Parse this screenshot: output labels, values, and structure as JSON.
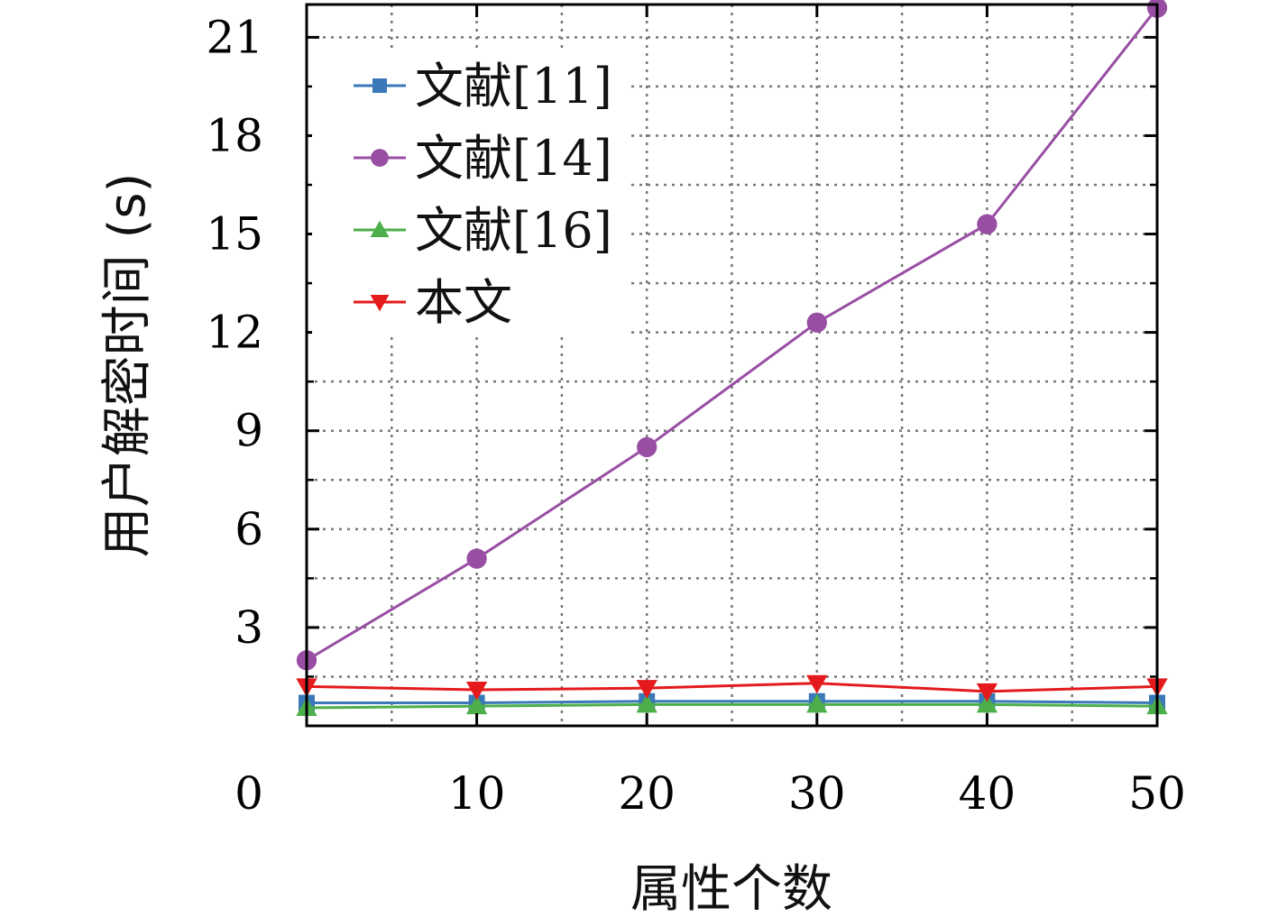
{
  "chart_data": {
    "type": "line",
    "xlabel": "属性个数",
    "ylabel": "用户解密时间 (s)",
    "xlim": [
      0,
      50
    ],
    "ylim": [
      0,
      22
    ],
    "x_ticks": [
      "0",
      "10",
      "20",
      "30",
      "40",
      "50"
    ],
    "y_ticks": [
      "3",
      "6",
      "9",
      "12",
      "15",
      "18",
      "21"
    ],
    "grid": true,
    "legend_position": "top-left",
    "x": [
      0,
      10,
      20,
      30,
      40,
      50
    ],
    "series": [
      {
        "name": "文献[11]",
        "color": "#3a78b8",
        "marker": "square",
        "values": [
          0.7,
          0.7,
          0.75,
          0.75,
          0.75,
          0.7
        ]
      },
      {
        "name": "文献[14]",
        "color": "#984ea3",
        "marker": "circle",
        "values": [
          2.0,
          5.1,
          8.5,
          12.3,
          15.3,
          21.9
        ]
      },
      {
        "name": "文献[16]",
        "color": "#4daf4a",
        "marker": "triangle-up",
        "values": [
          0.55,
          0.6,
          0.65,
          0.65,
          0.65,
          0.6
        ]
      },
      {
        "name": "本文",
        "color": "#e41a1c",
        "marker": "triangle-down",
        "values": [
          1.2,
          1.1,
          1.15,
          1.3,
          1.05,
          1.2
        ]
      }
    ]
  }
}
